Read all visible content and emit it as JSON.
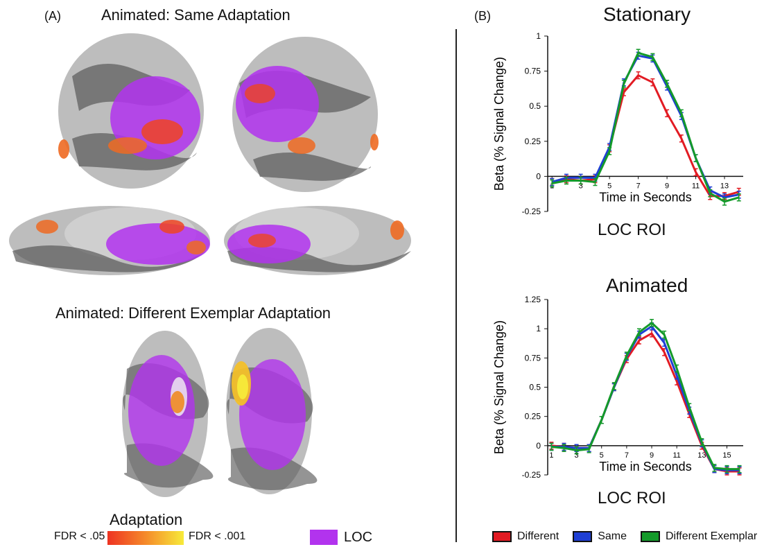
{
  "panel_a": {
    "label": "(A)",
    "title_same": "Animated: Same Adaptation",
    "title_different": "Animated:  Different Exemplar Adaptation",
    "legend": {
      "title": "Adaptation",
      "low": "FDR < .05",
      "high": "FDR < .001",
      "loc": "LOC"
    },
    "colors": {
      "loc": "#b233ee",
      "adapt_low": "#ee4422",
      "adapt_high": "#f7ea3a",
      "brain_dark": "#555555",
      "brain_light": "#bdbdbd"
    }
  },
  "panel_b": {
    "label": "(B)",
    "legend": [
      "Different",
      "Same",
      "Different Exemplar"
    ]
  },
  "chart_data": [
    {
      "type": "line",
      "title": "Stationary",
      "subtitle": "LOC ROI",
      "xlabel": "Time in Seconds",
      "ylabel": "Beta (% Signal Change)",
      "ylim": [
        -0.25,
        1
      ],
      "yticks": [
        "-0.25",
        "0",
        "0.25",
        "0.5",
        "0.75",
        "1"
      ],
      "xticks": [
        "1",
        "3",
        "5",
        "7",
        "9",
        "11",
        "13"
      ],
      "x": [
        1,
        2,
        3,
        4,
        5,
        6,
        7,
        8,
        9,
        10,
        11,
        12,
        13,
        14
      ],
      "grid": false,
      "series": [
        {
          "name": "Different",
          "color": "#e21b23",
          "values": [
            -0.04,
            -0.02,
            -0.03,
            -0.02,
            0.2,
            0.6,
            0.72,
            0.67,
            0.45,
            0.27,
            0.03,
            -0.14,
            -0.14,
            -0.11
          ]
        },
        {
          "name": "Same",
          "color": "#1f3fd4",
          "values": [
            -0.04,
            -0.01,
            -0.01,
            -0.01,
            0.21,
            0.67,
            0.86,
            0.84,
            0.64,
            0.43,
            0.13,
            -0.1,
            -0.15,
            -0.13
          ]
        },
        {
          "name": "Different Exemplar",
          "color": "#149a2a",
          "values": [
            -0.05,
            -0.03,
            -0.03,
            -0.04,
            0.18,
            0.66,
            0.88,
            0.85,
            0.66,
            0.45,
            0.13,
            -0.12,
            -0.18,
            -0.15
          ]
        }
      ]
    },
    {
      "type": "line",
      "title": "Animated",
      "subtitle": "LOC ROI",
      "xlabel": "Time in Seconds",
      "ylabel": "Beta (% Signal Change)",
      "ylim": [
        -0.25,
        1.25
      ],
      "yticks": [
        "-0.25",
        "0",
        "0.25",
        "0.5",
        "0.75",
        "1",
        "1.25"
      ],
      "xticks": [
        "1",
        "3",
        "5",
        "7",
        "9",
        "11",
        "13",
        "15"
      ],
      "x": [
        1,
        2,
        3,
        4,
        5,
        6,
        7,
        8,
        9,
        10,
        11,
        12,
        13,
        14,
        15,
        16
      ],
      "grid": false,
      "series": [
        {
          "name": "Different",
          "color": "#e21b23",
          "values": [
            0.0,
            -0.01,
            -0.02,
            -0.02,
            0.22,
            0.5,
            0.74,
            0.9,
            0.96,
            0.8,
            0.55,
            0.27,
            0.0,
            -0.2,
            -0.22,
            -0.22
          ]
        },
        {
          "name": "Same",
          "color": "#1f3fd4",
          "values": [
            -0.01,
            -0.01,
            -0.02,
            -0.02,
            0.22,
            0.5,
            0.76,
            0.95,
            1.02,
            0.88,
            0.6,
            0.3,
            0.02,
            -0.2,
            -0.21,
            -0.21
          ]
        },
        {
          "name": "Different Exemplar",
          "color": "#149a2a",
          "values": [
            -0.01,
            -0.02,
            -0.04,
            -0.03,
            0.22,
            0.51,
            0.77,
            0.97,
            1.05,
            0.95,
            0.66,
            0.33,
            0.03,
            -0.19,
            -0.2,
            -0.2
          ]
        }
      ]
    }
  ]
}
